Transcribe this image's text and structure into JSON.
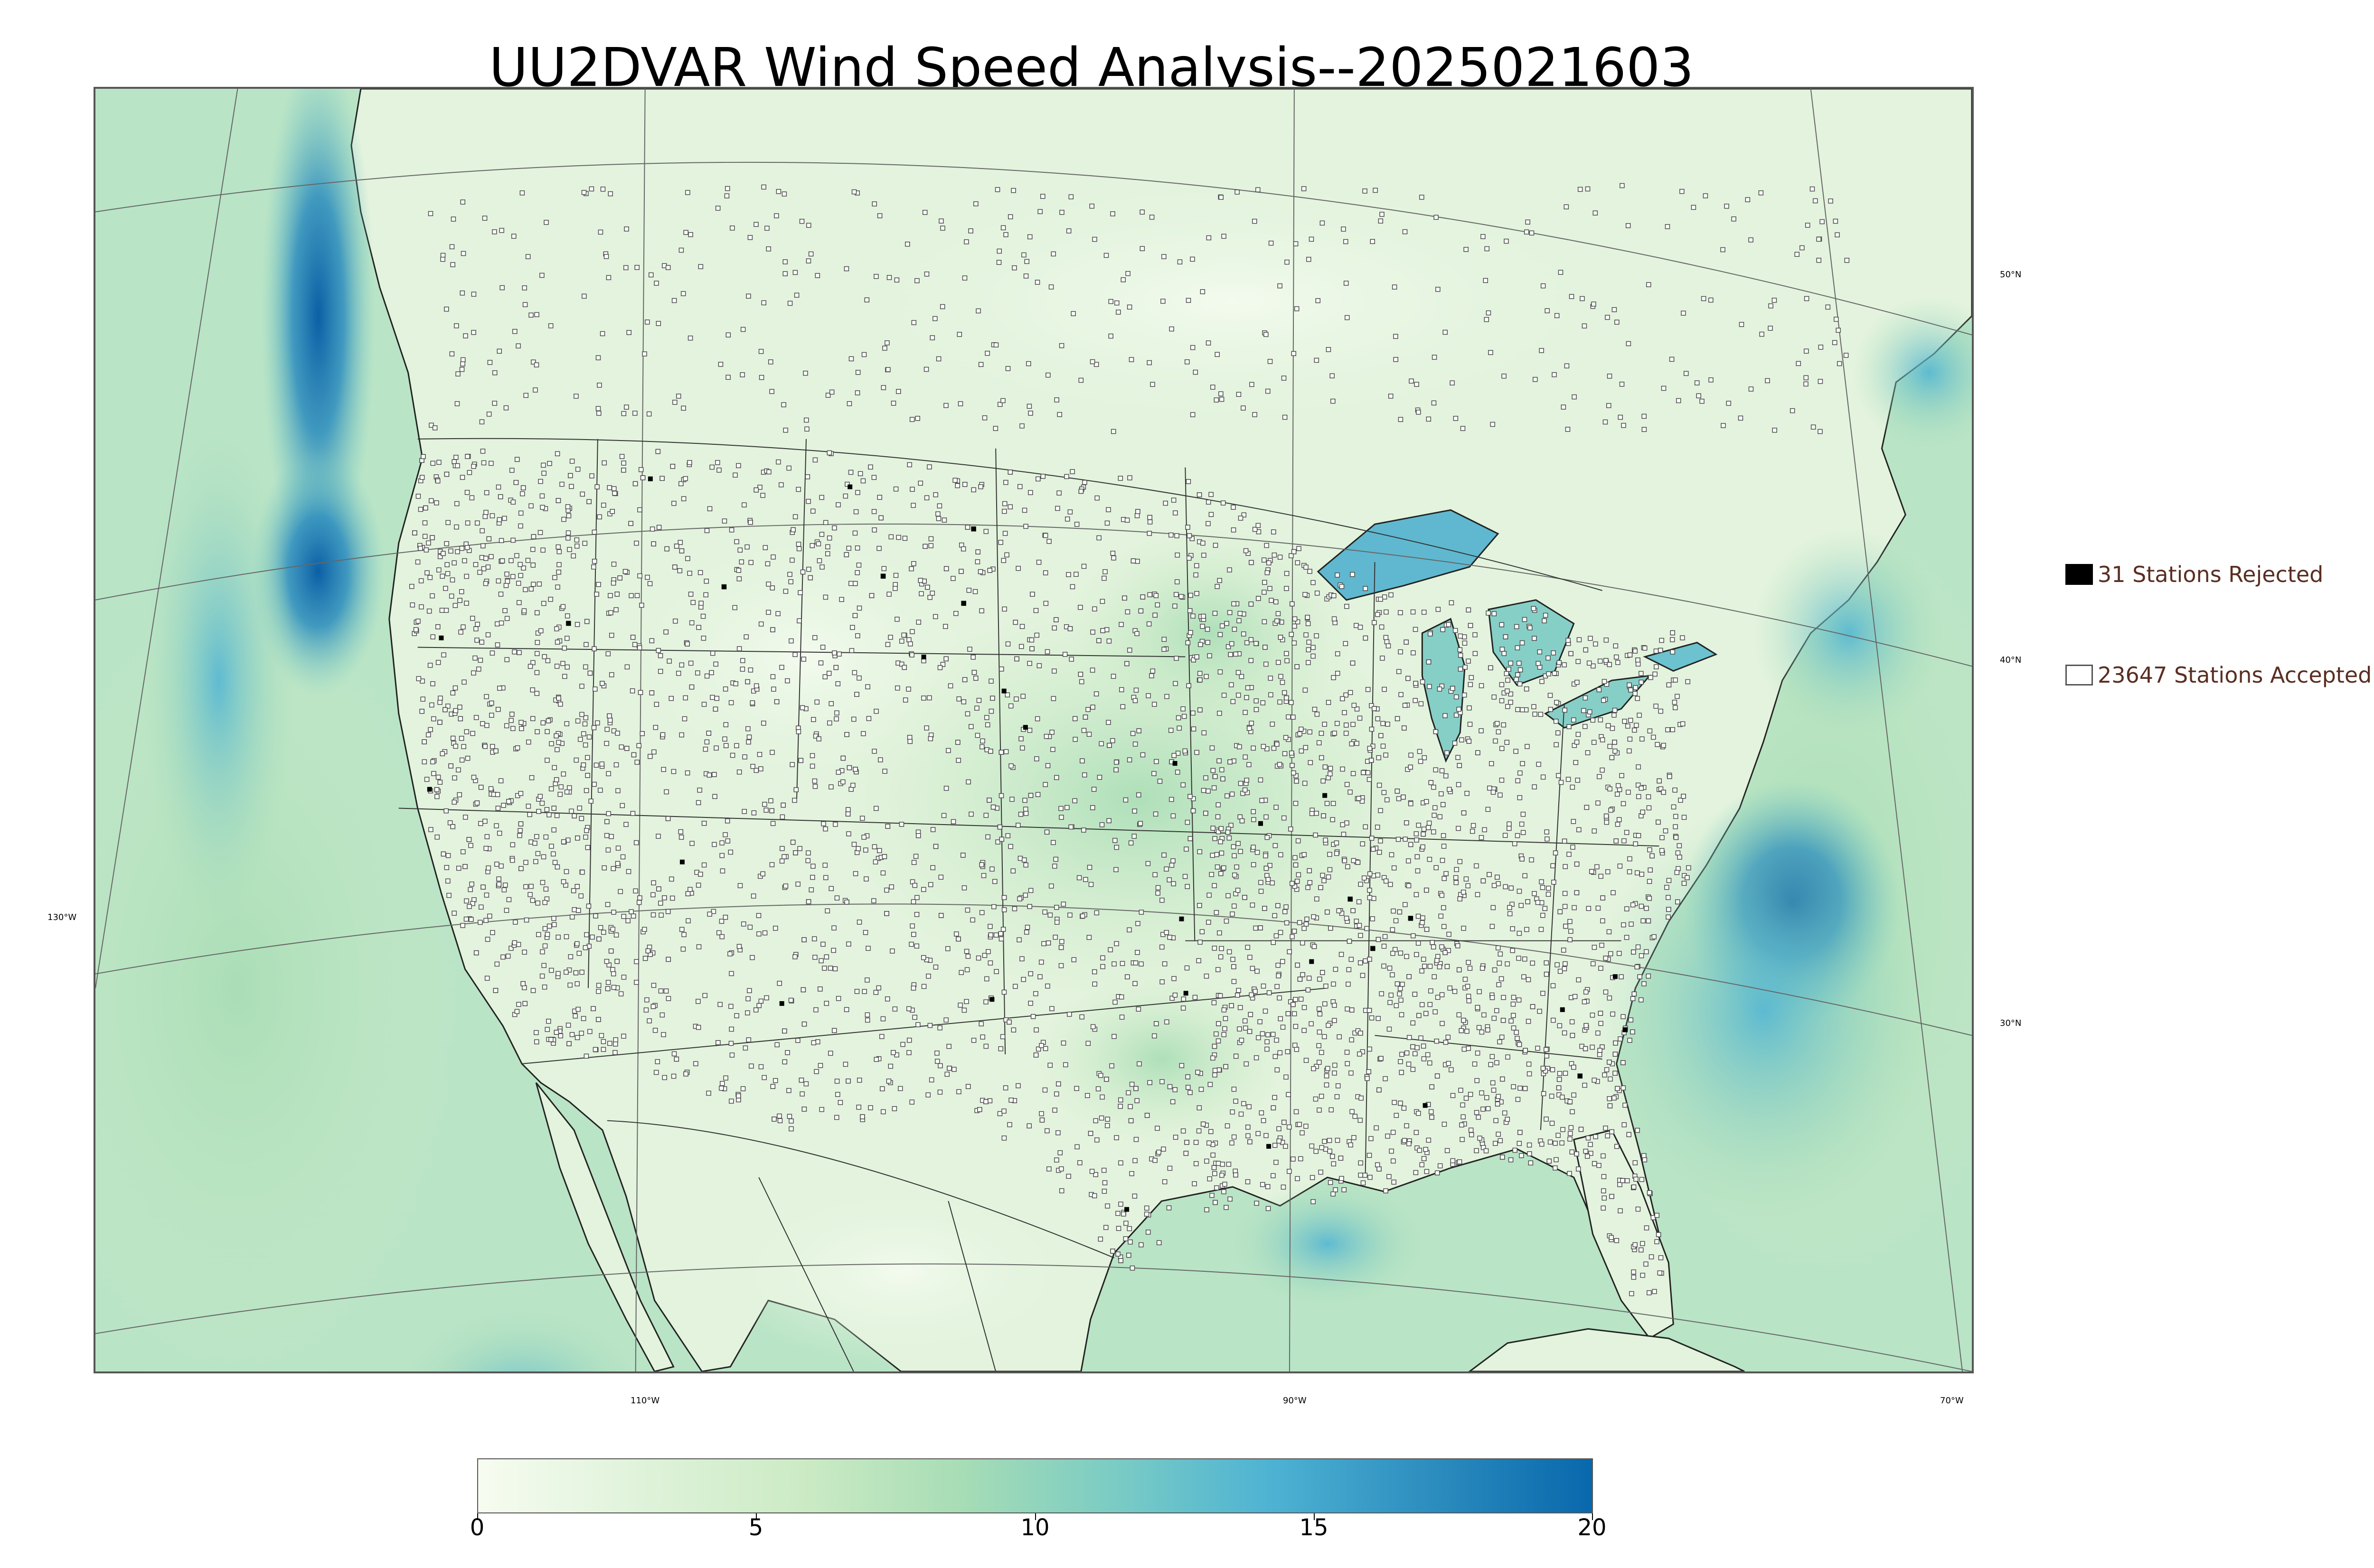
{
  "title": "UU2DVAR Wind Speed Analysis--2025021603",
  "map": {
    "lat_labels": [
      "50°N",
      "40°N",
      "30°N"
    ],
    "lon_labels": [
      "130°W",
      "110°W",
      "90°W",
      "70°W"
    ]
  },
  "legend": {
    "rejected": {
      "label": "31 Stations Rejected",
      "count": 31,
      "color": "#000000"
    },
    "accepted": {
      "label": "23647 Stations Accepted",
      "count": 23647,
      "color": "#ffffff"
    }
  },
  "colorbar": {
    "ticks": [
      "0",
      "5",
      "10",
      "15",
      "20"
    ],
    "range": [
      0,
      20
    ],
    "colormap": "GnBu",
    "colors": [
      "#f7fcf0",
      "#e0f3db",
      "#ccebc5",
      "#a8ddb5",
      "#7bccc4",
      "#4eb3d3",
      "#2b8cbe",
      "#0868ac"
    ]
  },
  "colors": {
    "land_base": "#e6f5df",
    "ocean_base": "#b8e3c4",
    "strong_wind": "#1d6fb0",
    "boundary": "#222222"
  }
}
